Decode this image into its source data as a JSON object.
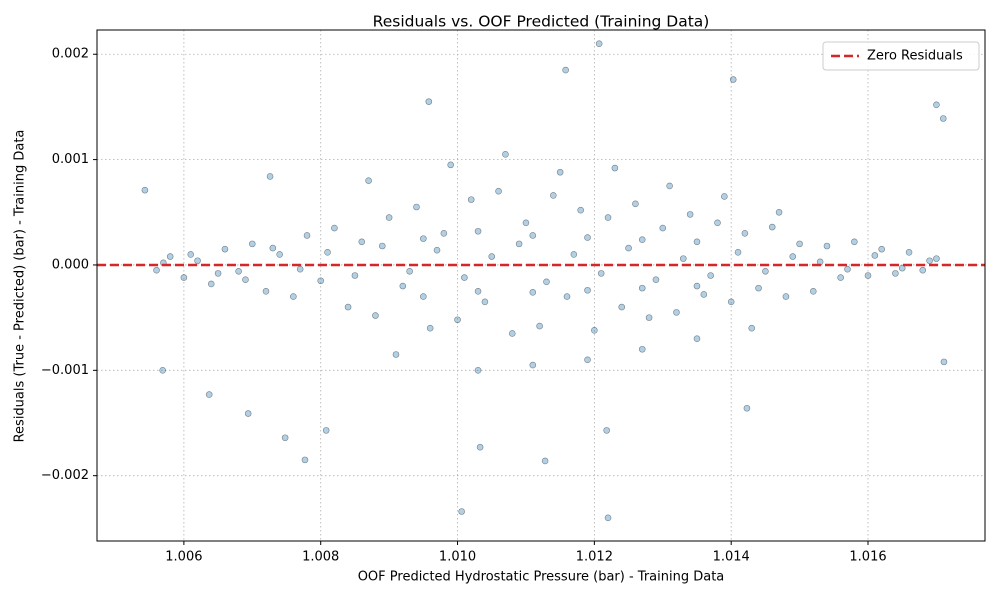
{
  "chart_data": {
    "type": "scatter",
    "title": "Residuals vs. OOF Predicted (Training Data)",
    "xlabel": "OOF Predicted Hydrostatic Pressure (bar) - Training Data",
    "ylabel": "Residuals (True - Predicted) (bar) - Training Data",
    "xlim": [
      1.00473,
      1.01771
    ],
    "ylim": [
      -0.00262,
      0.00223
    ],
    "xticks": [
      {
        "value": 1.006,
        "label": "1.006"
      },
      {
        "value": 1.008,
        "label": "1.008"
      },
      {
        "value": 1.01,
        "label": "1.010"
      },
      {
        "value": 1.012,
        "label": "1.012"
      },
      {
        "value": 1.014,
        "label": "1.014"
      },
      {
        "value": 1.016,
        "label": "1.016"
      }
    ],
    "yticks": [
      {
        "value": -0.002,
        "label": "−0.002"
      },
      {
        "value": -0.001,
        "label": "−0.001"
      },
      {
        "value": 0,
        "label": "0.000"
      },
      {
        "value": 0.001,
        "label": "0.001"
      },
      {
        "value": 0.002,
        "label": "0.002"
      }
    ],
    "grid": true,
    "legend": "upper right",
    "hlines": [
      {
        "name": "Zero Residuals",
        "y": 0,
        "color": "#d62728"
      }
    ],
    "series": [
      {
        "color": "#1f77b4",
        "x": [
          1.0056,
          1.0058,
          1.006,
          1.0062,
          1.0064,
          1.0066,
          1.0068,
          1.007,
          1.0072,
          1.0074,
          1.0076,
          1.0078,
          1.008,
          1.0082,
          1.0084,
          1.0086,
          1.0088,
          1.009,
          1.0092,
          1.0094,
          1.0096,
          1.0098,
          1.01,
          1.0102,
          1.0104,
          1.0106,
          1.0108,
          1.011,
          1.0112,
          1.0114,
          1.0116,
          1.0118,
          1.012,
          1.0122,
          1.0124,
          1.0126,
          1.0128,
          1.013,
          1.0132,
          1.0134,
          1.0136,
          1.0138,
          1.014,
          1.0142,
          1.0144,
          1.0146,
          1.0148,
          1.015,
          1.0152,
          1.0154,
          1.0156,
          1.0158,
          1.016,
          1.0162,
          1.0164,
          1.0166,
          1.0168,
          1.017,
          1.0057,
          1.0061,
          1.0065,
          1.0069,
          1.0073,
          1.0077,
          1.0081,
          1.0085,
          1.0089,
          1.0093,
          1.0097,
          1.0101,
          1.0105,
          1.0109,
          1.0113,
          1.0117,
          1.0121,
          1.0125,
          1.0129,
          1.0133,
          1.0137,
          1.0141,
          1.0145,
          1.0149,
          1.0153,
          1.0157,
          1.0161,
          1.0165,
          1.0169,
          1.0087,
          1.0091,
          1.0099,
          1.0103,
          1.0107,
          1.0111,
          1.0115,
          1.0119,
          1.0123,
          1.0127,
          1.0131,
          1.0135,
          1.0139,
          1.0143,
          1.0147,
          1.0095,
          1.0103,
          1.0111,
          1.0119,
          1.0127,
          1.0135,
          1.0095,
          1.0103,
          1.0111,
          1.0119,
          1.0127,
          1.0135,
          1.00543,
          1.01006,
          1.0122,
          1.01207,
          1.01158,
          1.01403,
          1.00958,
          1.017,
          1.0171,
          1.01033,
          1.01128,
          1.00777,
          1.00748,
          1.00637,
          1.00694,
          1.01218,
          1.00808,
          1.01711,
          1.01423,
          1.00726,
          1.00569
        ],
        "y": [
          -5e-05,
          8e-05,
          -0.00012,
          4e-05,
          -0.00018,
          0.00015,
          -6e-05,
          0.0002,
          -0.00025,
          0.0001,
          -0.0003,
          0.00028,
          -0.00015,
          0.00035,
          -0.0004,
          0.00022,
          -0.00048,
          0.00045,
          -0.0002,
          0.00055,
          -0.0006,
          0.0003,
          -0.00052,
          0.00062,
          -0.00035,
          0.0007,
          -0.00065,
          0.0004,
          -0.00058,
          0.00066,
          -0.0003,
          0.00052,
          -0.00062,
          0.00045,
          -0.0004,
          0.00058,
          -0.0005,
          0.00035,
          -0.00045,
          0.00048,
          -0.00028,
          0.0004,
          -0.00035,
          0.0003,
          -0.00022,
          0.00036,
          -0.0003,
          0.0002,
          -0.00025,
          0.00018,
          -0.00012,
          0.00022,
          -0.0001,
          0.00015,
          -8e-05,
          0.00012,
          -5e-05,
          6e-05,
          2e-05,
          0.0001,
          -8e-05,
          -0.00014,
          0.00016,
          -4e-05,
          0.00012,
          -0.0001,
          0.00018,
          -6e-05,
          0.00014,
          -0.00012,
          8e-05,
          0.0002,
          -0.00016,
          0.0001,
          -8e-05,
          0.00016,
          -0.00014,
          6e-05,
          -0.0001,
          0.00012,
          -6e-05,
          8e-05,
          3e-05,
          -4e-05,
          9e-05,
          -3e-05,
          4e-05,
          0.0008,
          -0.00085,
          0.00095,
          -0.001,
          0.00105,
          -0.00095,
          0.00088,
          -0.0009,
          0.00092,
          -0.0008,
          0.00075,
          -0.0007,
          0.00065,
          -0.0006,
          0.0005,
          0.00025,
          0.00032,
          0.00028,
          0.00026,
          0.00024,
          0.00022,
          -0.0003,
          -0.00025,
          -0.00026,
          -0.00024,
          -0.00022,
          -0.0002,
          0.00071,
          -0.00234,
          -0.0024,
          0.0021,
          0.00185,
          0.00176,
          0.00155,
          0.00152,
          0.00139,
          -0.00173,
          -0.00186,
          -0.00185,
          -0.00164,
          -0.00123,
          -0.00141,
          -0.00157,
          -0.00157,
          -0.00092,
          -0.00136,
          0.00084,
          -0.001
        ]
      }
    ]
  }
}
